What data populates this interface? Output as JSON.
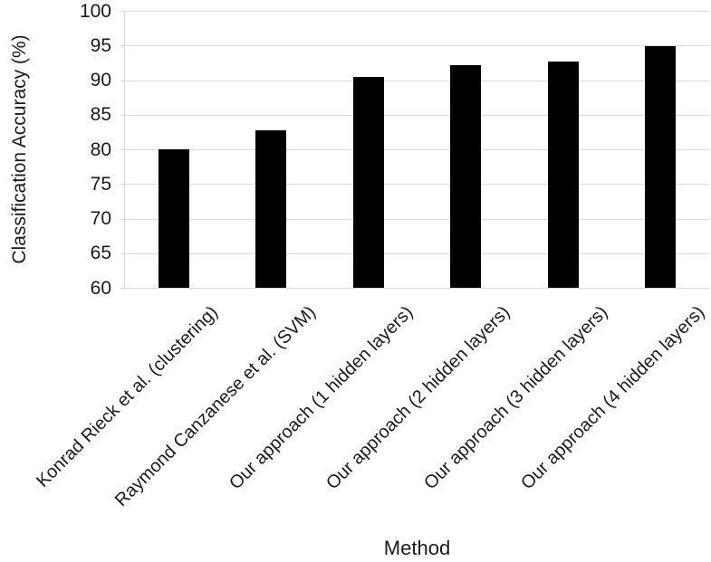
{
  "chart_data": {
    "type": "bar",
    "title": "",
    "xlabel": "Method",
    "ylabel": "Classification Accuracy (%)",
    "categories": [
      "Konrad Rieck et al. (clustering)",
      "Raymond Canzanese et al. (SVM)",
      "Our approach (1 hidden layers)",
      "Our approach (2 hidden layers)",
      "Our approach (3 hidden layers)",
      "Our approach (4 hidden layers)"
    ],
    "values": [
      80.0,
      82.7,
      90.4,
      92.2,
      92.7,
      94.9
    ],
    "ylim": [
      60,
      100
    ],
    "yticks": [
      60,
      65,
      70,
      75,
      80,
      85,
      90,
      95,
      100
    ],
    "grid": true,
    "legend": "none",
    "colors": {
      "bar": "#000000",
      "gridline": "#d9d9d9",
      "text": "#1a1a1a",
      "background": "#ffffff"
    }
  }
}
